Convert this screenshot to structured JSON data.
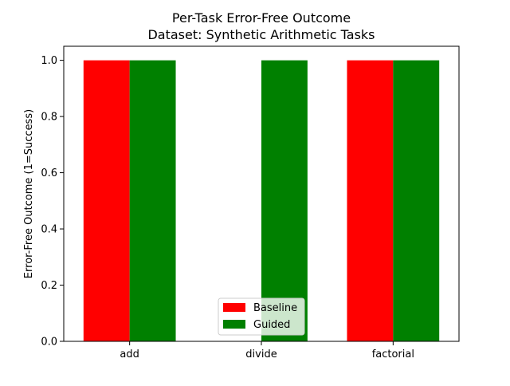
{
  "chart_data": {
    "type": "bar",
    "title": "Per-Task Error-Free Outcome",
    "subtitle": "Dataset: Synthetic Arithmetic Tasks",
    "xlabel": "",
    "ylabel": "Error-Free Outcome (1=Success)",
    "categories": [
      "add",
      "divide",
      "factorial"
    ],
    "series": [
      {
        "name": "Baseline",
        "color": "#ff0000",
        "values": [
          1.0,
          0.0,
          1.0
        ]
      },
      {
        "name": "Guided",
        "color": "#008000",
        "values": [
          1.0,
          1.0,
          1.0
        ]
      }
    ],
    "ylim": [
      0,
      1.05
    ],
    "yticks": [
      "0.0",
      "0.2",
      "0.4",
      "0.6",
      "0.8",
      "1.0"
    ],
    "grid": false,
    "legend_position": "lower center"
  }
}
